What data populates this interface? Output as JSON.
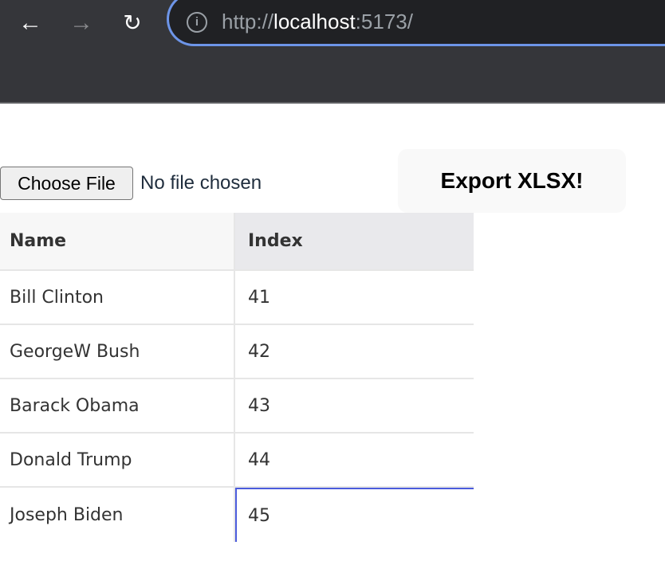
{
  "browser": {
    "url_scheme": "http://",
    "url_host": "localhost",
    "url_rest": ":5173/",
    "back_icon": "arrow-left",
    "forward_icon": "arrow-right",
    "reload_icon": "reload"
  },
  "file_input": {
    "button_label": "Choose File",
    "status": "No file chosen"
  },
  "export_button": {
    "label": "Export XLSX!"
  },
  "grid": {
    "columns": [
      "Name",
      "Index"
    ],
    "rows": [
      [
        "Bill Clinton",
        "41"
      ],
      [
        "GeorgeW Bush",
        "42"
      ],
      [
        "Barack Obama",
        "43"
      ],
      [
        "Donald Trump",
        "44"
      ],
      [
        "Joseph Biden",
        "45"
      ]
    ],
    "selected_cell": {
      "row": 4,
      "column": "Index"
    },
    "selection_color": "#4b5bdc"
  }
}
